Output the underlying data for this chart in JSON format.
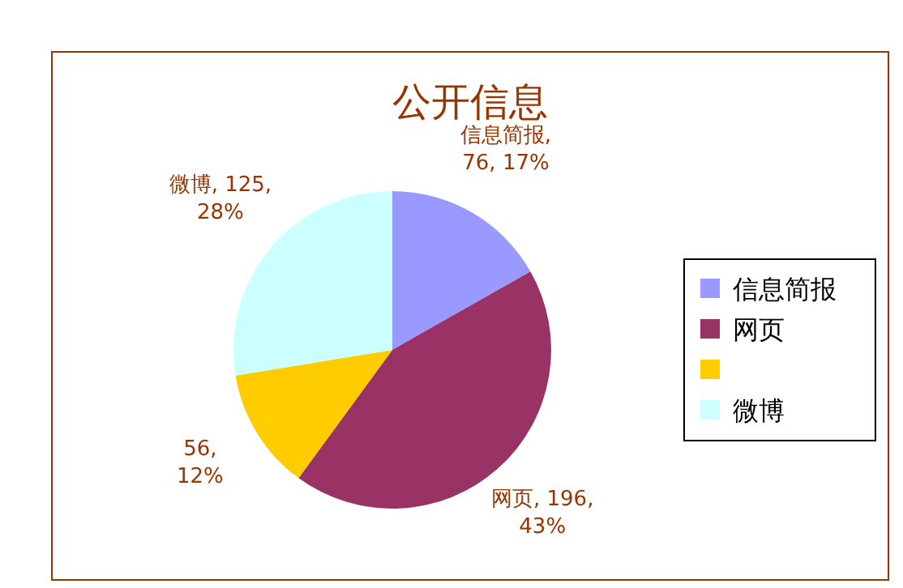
{
  "chart_data": {
    "type": "pie",
    "title": "公开信息",
    "categories": [
      "信息简报",
      "网页",
      null,
      "微博"
    ],
    "values": [
      76,
      196,
      56,
      125
    ],
    "colors": [
      "#9999ff",
      "#993366",
      "#ffcc00",
      "#ccffff"
    ],
    "value_labels": [
      "信息简报,\n76, 17%",
      "网页, 196,\n43%",
      "56,\n12%",
      "微博, 125,\n28%"
    ],
    "legend": "right"
  }
}
